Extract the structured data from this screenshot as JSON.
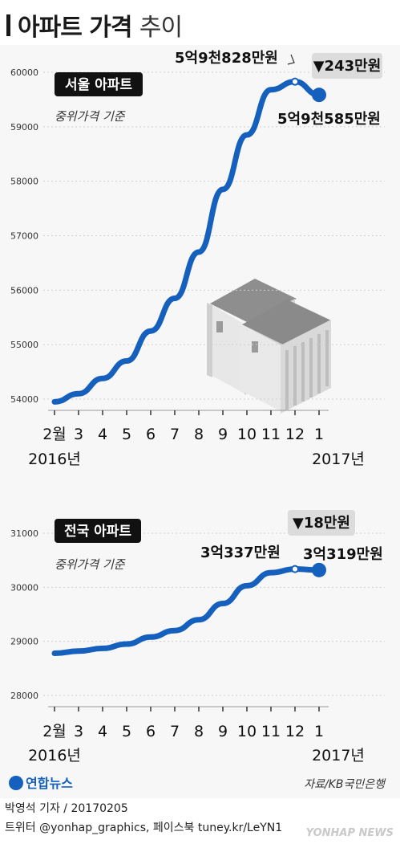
{
  "title_main": "아파트 가격",
  "title_sub": "추이",
  "charts": [
    {
      "badge": "서울 아파트",
      "subtitle": "중위가격 기준",
      "label_start": "5억9천828만원",
      "label_end": "5억9천585만원",
      "change": "▼243만원"
    },
    {
      "badge": "전국 아파트",
      "subtitle": "중위가격 기준",
      "label_start": "3억337만원",
      "label_end": "3억319만원",
      "change": "▼18만원"
    }
  ],
  "x_year_start": "2016년",
  "x_year_end": "2017년",
  "logo_text": "연합뉴스",
  "source": "자료/KB국민은행",
  "credit": "박영석 기자 / 20170205",
  "social": "트위터 @yonhap_graphics, 페이스북 tuney.kr/LeYN1",
  "watermark": "YONHAP NEWS",
  "colors": {
    "line": "#1560bd",
    "badge": "#111111",
    "axis": "#999999"
  },
  "chart_data": [
    {
      "type": "line",
      "title": "서울 아파트",
      "categories": [
        "2",
        "3",
        "4",
        "5",
        "6",
        "7",
        "8",
        "9",
        "10",
        "11",
        "12",
        "1"
      ],
      "category_labels": [
        "2월",
        "3",
        "4",
        "5",
        "6",
        "7",
        "8",
        "9",
        "10",
        "11",
        "12",
        "1"
      ],
      "values": [
        53950,
        54100,
        54380,
        54700,
        55250,
        55850,
        56700,
        57850,
        58850,
        59680,
        59828,
        59585
      ],
      "ylim": [
        54000,
        60000
      ],
      "yticks": [
        54000,
        55000,
        56000,
        57000,
        58000,
        59000,
        60000
      ],
      "grid": true
    },
    {
      "type": "line",
      "title": "전국 아파트",
      "categories": [
        "2",
        "3",
        "4",
        "5",
        "6",
        "7",
        "8",
        "9",
        "10",
        "11",
        "12",
        "1"
      ],
      "category_labels": [
        "2월",
        "3",
        "4",
        "5",
        "6",
        "7",
        "8",
        "9",
        "10",
        "11",
        "12",
        "1"
      ],
      "values": [
        28780,
        28820,
        28870,
        28950,
        29080,
        29200,
        29400,
        29700,
        30030,
        30270,
        30337,
        30319
      ],
      "ylim": [
        28000,
        31000
      ],
      "yticks": [
        28000,
        29000,
        30000,
        31000
      ],
      "grid": true
    }
  ]
}
